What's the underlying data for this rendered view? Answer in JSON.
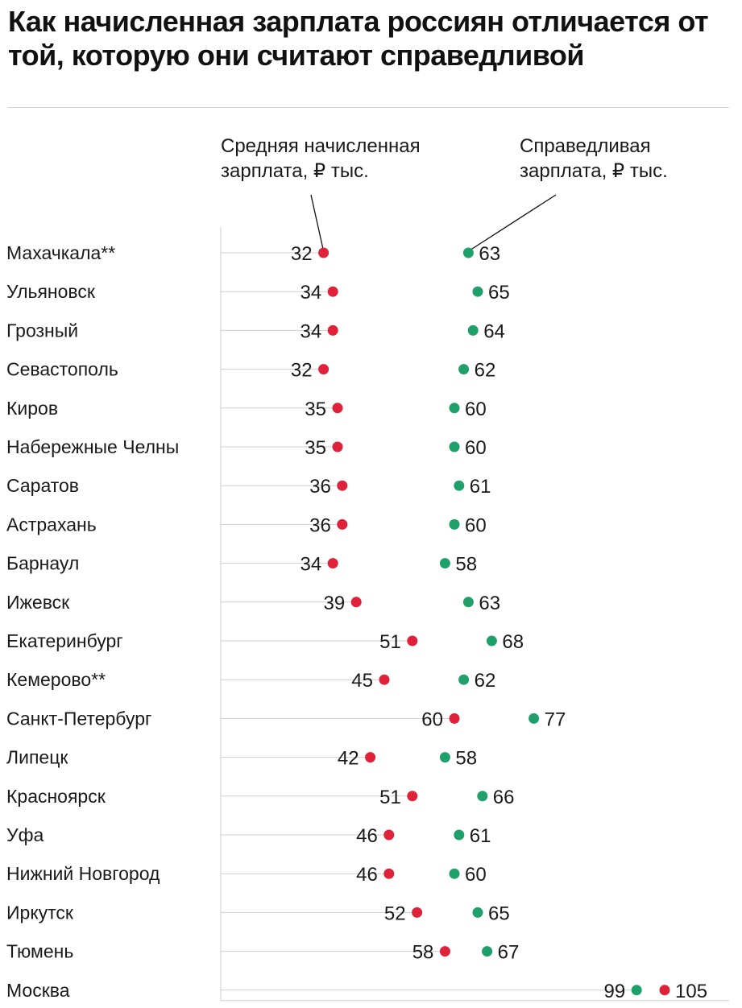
{
  "title": "Как начисленная зарплата россиян отличается от той, которую они считают справедливой",
  "header": {
    "left_label_line1": "Средняя начисленная",
    "left_label_line2": "зарплата, ₽ тыс.",
    "right_label_line1": "Справедливая",
    "right_label_line2": "зарплата, ₽ тыс."
  },
  "colors": {
    "accrued": "#e0213a",
    "fair": "#1fa06b",
    "gridline": "#cfcfcf",
    "text": "#1a1a1a"
  },
  "chart_data": {
    "type": "dumbbell",
    "xlim": [
      0,
      110
    ],
    "series": [
      {
        "name": "Средняя начисленная зарплата, ₽ тыс.",
        "color": "#e0213a"
      },
      {
        "name": "Справедливая зарплата, ₽ тыс.",
        "color": "#1fa06b"
      }
    ],
    "categories": [
      "Махачкала**",
      "Ульяновск",
      "Грозный",
      "Севастополь",
      "Киров",
      "Набережные Челны",
      "Саратов",
      "Астрахань",
      "Барнаул",
      "Ижевск",
      "Екатеринбург",
      "Кемерово**",
      "Санкт-Петербург",
      "Липецк",
      "Красноярск",
      "Уфа",
      "Нижний Новгород",
      "Иркутск",
      "Тюмень",
      "Москва"
    ],
    "accrued": [
      32,
      34,
      34,
      32,
      35,
      35,
      36,
      36,
      34,
      39,
      51,
      45,
      60,
      42,
      51,
      46,
      46,
      52,
      58,
      105
    ],
    "fair": [
      63,
      65,
      64,
      62,
      60,
      60,
      61,
      60,
      58,
      63,
      68,
      62,
      77,
      58,
      66,
      61,
      60,
      65,
      67,
      99
    ]
  }
}
